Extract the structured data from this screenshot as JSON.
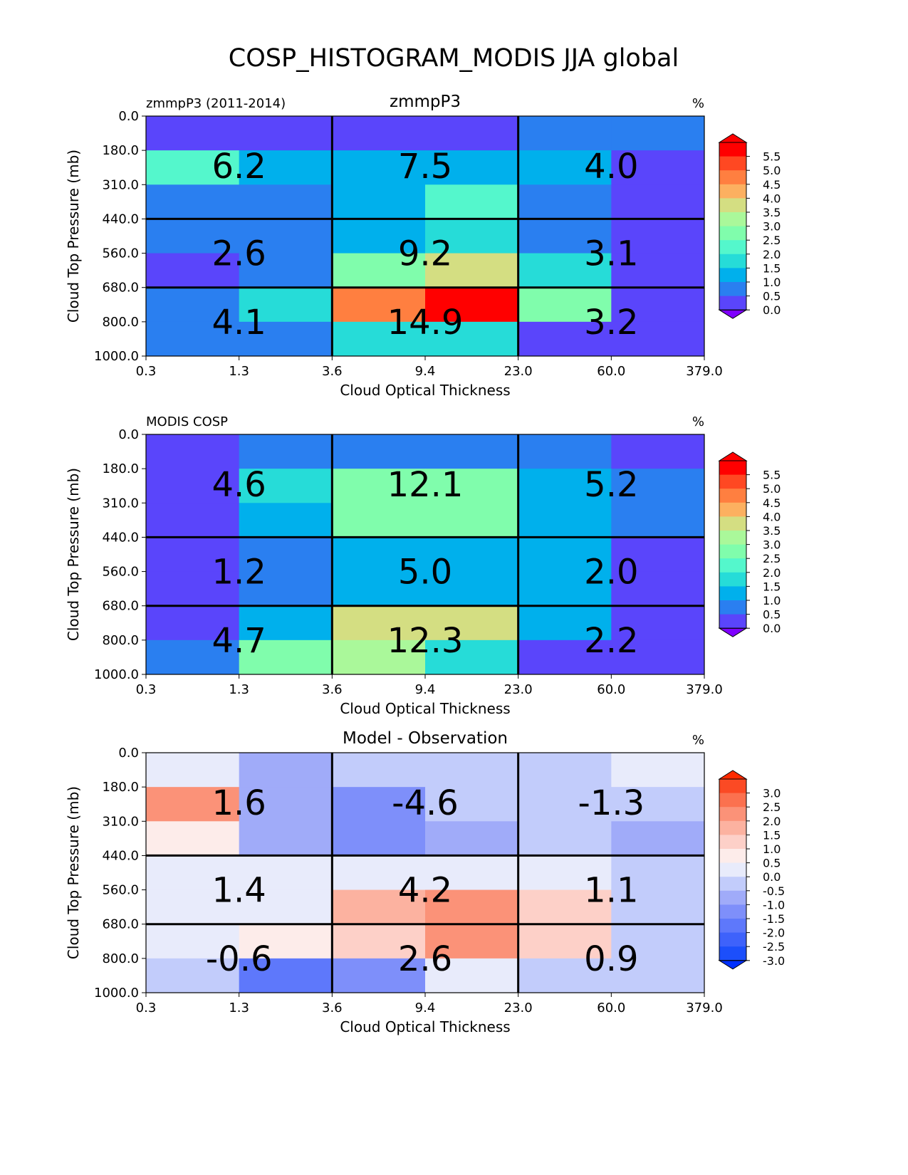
{
  "title": "COSP_HISTOGRAM_MODIS JJA global",
  "chart_data": [
    {
      "type": "heatmap",
      "panel_left_label": "zmmpP3 (2011-2014)",
      "panel_center_label": "zmmpP3",
      "units_label": "%",
      "xlabel": "Cloud Optical Thickness",
      "ylabel": "Cloud Top Pressure (mb)",
      "xticks": [
        "0.3",
        "1.3",
        "3.6",
        "9.4",
        "23.0",
        "60.0",
        "379.0"
      ],
      "yticks": [
        "0.0",
        "180.0",
        "310.0",
        "440.0",
        "560.0",
        "680.0",
        "800.0",
        "1000.0"
      ],
      "colormap": "rainbow",
      "colorbar_ticks": [
        "5.5",
        "5.0",
        "4.5",
        "4.0",
        "3.5",
        "3.0",
        "2.5",
        "2.0",
        "1.5",
        "1.0",
        "0.5",
        "0.0"
      ],
      "values": [
        [
          0.3,
          0.3,
          0.3,
          0.3,
          0.8,
          0.8
        ],
        [
          2.3,
          1.3,
          1.3,
          1.3,
          1.3,
          0.3
        ],
        [
          0.8,
          0.8,
          1.3,
          2.3,
          0.8,
          0.3
        ],
        [
          0.8,
          0.8,
          1.3,
          1.8,
          0.8,
          0.3
        ],
        [
          0.3,
          0.8,
          2.8,
          3.8,
          1.8,
          0.3
        ],
        [
          0.8,
          1.8,
          4.8,
          5.8,
          2.8,
          0.3
        ],
        [
          0.8,
          0.8,
          1.8,
          1.8,
          0.3,
          0.3
        ]
      ],
      "box_totals": [
        [
          "6.2",
          "7.5",
          "4.0"
        ],
        [
          "2.6",
          "9.2",
          "3.1"
        ],
        [
          "4.1",
          "14.9",
          "3.2"
        ]
      ]
    },
    {
      "type": "heatmap",
      "panel_left_label": "MODIS COSP",
      "panel_center_label": "",
      "units_label": "%",
      "xlabel": "Cloud Optical Thickness",
      "ylabel": "Cloud Top Pressure (mb)",
      "xticks": [
        "0.3",
        "1.3",
        "3.6",
        "9.4",
        "23.0",
        "60.0",
        "379.0"
      ],
      "yticks": [
        "0.0",
        "180.0",
        "310.0",
        "440.0",
        "560.0",
        "680.0",
        "800.0",
        "1000.0"
      ],
      "colormap": "rainbow",
      "colorbar_ticks": [
        "5.5",
        "5.0",
        "4.5",
        "4.0",
        "3.5",
        "3.0",
        "2.5",
        "2.0",
        "1.5",
        "1.0",
        "0.5",
        "0.0"
      ],
      "values": [
        [
          0.3,
          0.8,
          0.8,
          0.8,
          0.8,
          0.3
        ],
        [
          0.3,
          1.8,
          2.8,
          2.8,
          1.3,
          0.8
        ],
        [
          0.3,
          1.3,
          2.8,
          2.8,
          1.3,
          0.8
        ],
        [
          0.3,
          0.8,
          1.3,
          1.3,
          1.3,
          0.3
        ],
        [
          0.3,
          0.8,
          1.3,
          1.3,
          1.3,
          0.3
        ],
        [
          0.3,
          1.3,
          3.8,
          3.8,
          1.3,
          0.3
        ],
        [
          0.8,
          2.8,
          3.3,
          1.8,
          0.3,
          0.3
        ]
      ],
      "box_totals": [
        [
          "4.6",
          "12.1",
          "5.2"
        ],
        [
          "1.2",
          "5.0",
          "2.0"
        ],
        [
          "4.7",
          "12.3",
          "2.2"
        ]
      ]
    },
    {
      "type": "heatmap",
      "panel_left_label": "",
      "panel_center_label": "Model - Observation",
      "units_label": "%",
      "xlabel": "Cloud Optical Thickness",
      "ylabel": "Cloud Top Pressure (mb)",
      "xticks": [
        "0.3",
        "1.3",
        "3.6",
        "9.4",
        "23.0",
        "60.0",
        "379.0"
      ],
      "yticks": [
        "0.0",
        "180.0",
        "310.0",
        "440.0",
        "560.0",
        "680.0",
        "800.0",
        "1000.0"
      ],
      "colormap": "bwr",
      "colorbar_ticks": [
        "3.0",
        "2.5",
        "2.0",
        "1.5",
        "1.0",
        "0.5",
        "0.0",
        "-0.5",
        "-1.0",
        "-1.5",
        "-2.0",
        "-2.5",
        "-3.0"
      ],
      "values": [
        [
          0.25,
          -0.75,
          -0.25,
          -0.25,
          -0.25,
          0.25
        ],
        [
          2.25,
          -0.75,
          -1.25,
          -0.25,
          -0.25,
          -0.25
        ],
        [
          0.75,
          -0.75,
          -1.25,
          -0.75,
          -0.25,
          -0.75
        ],
        [
          0.25,
          0.25,
          0.25,
          0.25,
          0.25,
          -0.25
        ],
        [
          0.25,
          0.25,
          1.75,
          2.25,
          1.25,
          -0.25
        ],
        [
          0.25,
          0.75,
          1.25,
          2.25,
          1.25,
          -0.25
        ],
        [
          -0.25,
          -1.75,
          -1.25,
          0.25,
          -0.25,
          -0.25
        ]
      ],
      "box_totals": [
        [
          "1.6",
          "-4.6",
          "-1.3"
        ],
        [
          "1.4",
          "4.2",
          "1.1"
        ],
        [
          "-0.6",
          "2.6",
          "0.9"
        ]
      ]
    }
  ]
}
